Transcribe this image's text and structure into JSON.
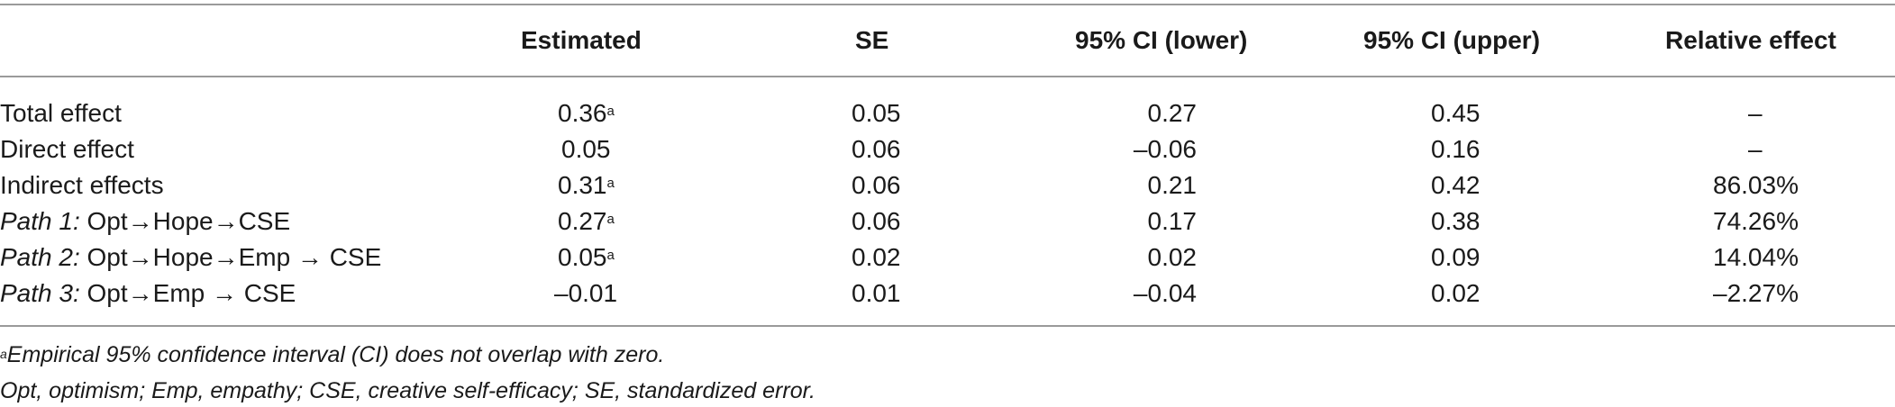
{
  "table": {
    "headers": [
      "",
      "Estimated",
      "SE",
      "95% CI (lower)",
      "95% CI (upper)",
      "Relative effect"
    ],
    "rows": [
      {
        "prefix": "",
        "label": "Total effect",
        "estimated": "0.36",
        "estimated_sup": "a",
        "se": "0.05",
        "ci_lower": "0.27",
        "ci_upper": "0.45",
        "relative": "–"
      },
      {
        "prefix": "",
        "label": "Direct effect",
        "estimated": "0.05",
        "estimated_sup": "",
        "se": "0.06",
        "ci_lower": "–0.06",
        "ci_upper": "0.16",
        "relative": "–"
      },
      {
        "prefix": "",
        "label": "Indirect effects",
        "estimated": "0.31",
        "estimated_sup": "a",
        "se": "0.06",
        "ci_lower": "0.21",
        "ci_upper": "0.42",
        "relative": "86.03%"
      },
      {
        "prefix": "Path 1:",
        "label": " Opt→Hope→CSE",
        "estimated": "0.27",
        "estimated_sup": "a",
        "se": "0.06",
        "ci_lower": "0.17",
        "ci_upper": "0.38",
        "relative": "74.26%"
      },
      {
        "prefix": "Path 2:",
        "label": " Opt→Hope→Emp → CSE",
        "estimated": "0.05",
        "estimated_sup": "a",
        "se": "0.02",
        "ci_lower": "0.02",
        "ci_upper": "0.09",
        "relative": "14.04%"
      },
      {
        "prefix": "Path 3:",
        "label": " Opt→Emp → CSE",
        "estimated": "–0.01",
        "estimated_sup": "",
        "se": "0.01",
        "ci_lower": "–0.04",
        "ci_upper": "0.02",
        "relative": "–2.27%"
      }
    ]
  },
  "footnotes": {
    "note_a_marker": "a",
    "note_a_text": "Empirical 95% confidence interval (CI) does not overlap with zero.",
    "abbreviations": "Opt, optimism; Emp, empathy; CSE, creative self-efficacy; SE, standardized error."
  }
}
